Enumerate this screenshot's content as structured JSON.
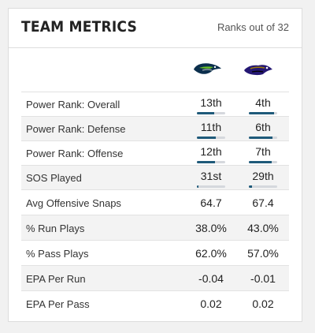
{
  "header": {
    "title": "TEAM METRICS",
    "subtitle": "Ranks out of 32"
  },
  "teams": [
    {
      "icon": "seahawks-logo-icon"
    },
    {
      "icon": "ravens-logo-icon"
    }
  ],
  "colors": {
    "rank_bar_fill": "#1f5a7a",
    "rank_bar_track": "#d5d8dd"
  },
  "rows": [
    {
      "label": "Power Rank: Overall",
      "values": [
        "13th",
        "4th"
      ],
      "bar_fill": [
        0.62,
        0.9
      ]
    },
    {
      "label": "Power Rank: Defense",
      "values": [
        "11th",
        "6th"
      ],
      "bar_fill": [
        0.68,
        0.84
      ]
    },
    {
      "label": "Power Rank: Offense",
      "values": [
        "12th",
        "7th"
      ],
      "bar_fill": [
        0.65,
        0.81
      ]
    },
    {
      "label": "SOS Played",
      "values": [
        "31st",
        "29th"
      ],
      "bar_fill": [
        0.06,
        0.12
      ]
    },
    {
      "label": "Avg Offensive Snaps",
      "values": [
        "64.7",
        "67.4"
      ]
    },
    {
      "label": "% Run Plays",
      "values": [
        "38.0%",
        "43.0%"
      ]
    },
    {
      "label": "% Pass Plays",
      "values": [
        "62.0%",
        "57.0%"
      ]
    },
    {
      "label": "EPA Per Run",
      "values": [
        "-0.04",
        "-0.01"
      ]
    },
    {
      "label": "EPA Per Pass",
      "values": [
        "0.02",
        "0.02"
      ]
    }
  ]
}
